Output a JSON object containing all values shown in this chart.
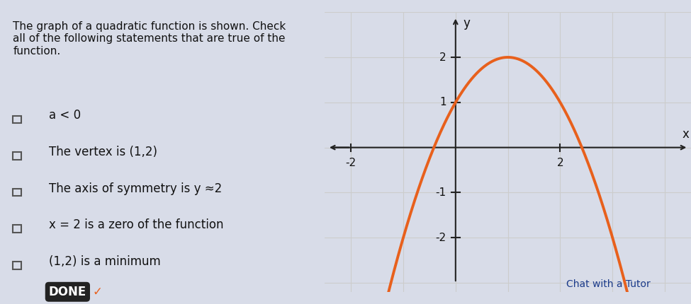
{
  "title_text": "The graph of a quadratic function is shown. Check\nall of the following statements that are true of the\nfunction.",
  "checkboxes": [
    "a < 0",
    "The vertex is (1,2)",
    "The axis of symmetry is y ≈2",
    "x = 2 is a zero of the function",
    "(1,2) is a minimum"
  ],
  "done_label": "DONE",
  "curve_color": "#e8601c",
  "curve_linewidth": 2.8,
  "vertex_x": 1,
  "vertex_y": 2,
  "a_coeff": -1,
  "x_range": [
    -2.5,
    4.5
  ],
  "y_range": [
    -3.2,
    3.0
  ],
  "axis_tick_color": "#222222",
  "grid_color": "#cccccc",
  "bg_color": "#d8dce8",
  "left_bg_color": "#d8dce8",
  "text_color": "#111111",
  "checkbox_color": "#555555",
  "x_ticks": [
    -2,
    2
  ],
  "y_ticks": [
    -2,
    -1,
    1,
    2
  ],
  "xlabel": "x",
  "ylabel": "y",
  "font_size_title": 11,
  "font_size_items": 12,
  "arrow_color": "#e8601c"
}
